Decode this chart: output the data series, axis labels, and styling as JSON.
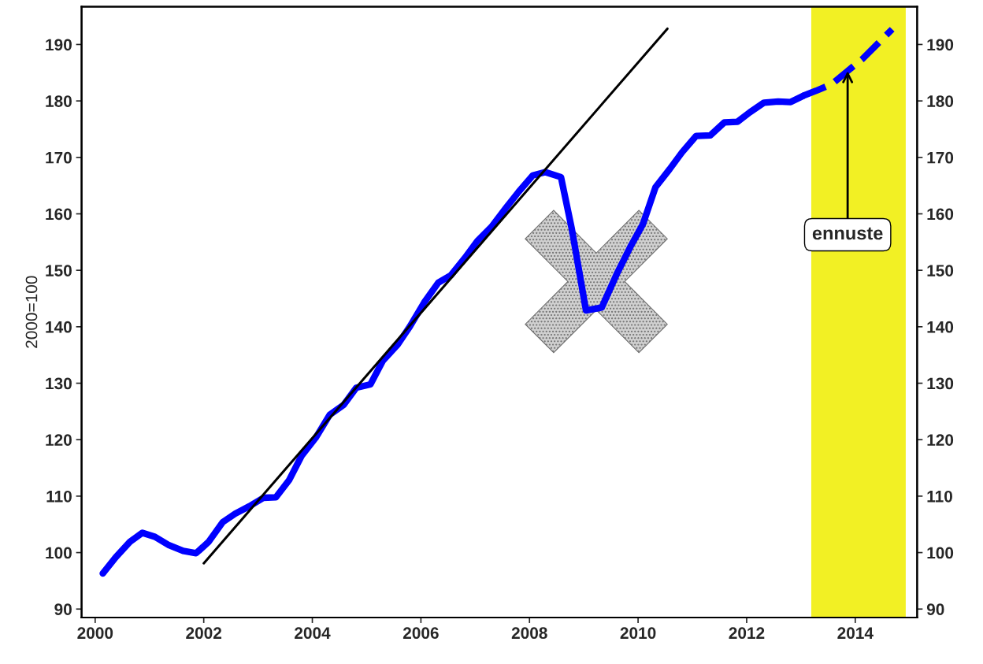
{
  "chart_data": {
    "type": "line",
    "ylabel": "2000=100",
    "xlim": [
      1999.75,
      2015.14
    ],
    "ylim": [
      88.5,
      196.7
    ],
    "xticks": [
      2000,
      2002,
      2004,
      2006,
      2008,
      2010,
      2012,
      2014
    ],
    "yticks": [
      90,
      100,
      110,
      120,
      130,
      140,
      150,
      160,
      170,
      180,
      190
    ],
    "y2lim": [
      88.5,
      196.7
    ],
    "y2ticks": [
      90,
      100,
      110,
      120,
      130,
      140,
      150,
      160,
      170,
      180,
      190
    ],
    "grid": false,
    "legend": false,
    "series": [
      {
        "color": "#0000ff",
        "line_style": "solid",
        "x": [
          2000.14,
          2000.38,
          2000.64,
          2000.87,
          2001.1,
          2001.36,
          2001.62,
          2001.86,
          2002.09,
          2002.35,
          2002.58,
          2002.84,
          2003.1,
          2003.33,
          2003.57,
          2003.8,
          2004.06,
          2004.32,
          2004.58,
          2004.81,
          2005.07,
          2005.3,
          2005.57,
          2005.8,
          2006.06,
          2006.32,
          2006.55,
          2006.81,
          2007.04,
          2007.3,
          2007.57,
          2007.8,
          2008.06,
          2008.29,
          2008.58,
          2008.78,
          2009.04,
          2009.33,
          2009.62,
          2009.86,
          2010.09,
          2010.32,
          2010.58,
          2010.81,
          2011.07,
          2011.33,
          2011.59,
          2011.83,
          2012.06,
          2012.32,
          2012.58,
          2012.81,
          2013.04
        ],
        "values": [
          96.3,
          99.2,
          101.9,
          103.5,
          102.8,
          101.3,
          100.3,
          99.9,
          101.9,
          105.4,
          106.9,
          108.2,
          109.7,
          109.8,
          112.8,
          117.1,
          120.3,
          124.4,
          126.2,
          129.2,
          129.8,
          134.0,
          136.8,
          140.1,
          144.3,
          147.8,
          149.1,
          152.2,
          155.2,
          157.7,
          161.1,
          163.9,
          166.8,
          167.4,
          166.5,
          157.3,
          142.9,
          143.4,
          149.6,
          154.2,
          158.2,
          164.7,
          167.9,
          170.9,
          173.8,
          173.9,
          176.2,
          176.3,
          178.0,
          179.7,
          179.9,
          179.8,
          180.9
        ]
      },
      {
        "color": "#0000ff",
        "line_style": "dashed",
        "x": [
          2013.04,
          2013.28,
          2013.57,
          2013.86,
          2014.14,
          2014.68
        ],
        "values": [
          180.9,
          181.8,
          183.0,
          185.3,
          187.5,
          192.7
        ]
      },
      {
        "color": "#000000",
        "line_style": "solid",
        "x": [
          2002.0,
          2010.54
        ],
        "values": [
          98.1,
          192.8
        ]
      }
    ],
    "bands": [
      {
        "axis": "x",
        "from": 2013.19,
        "to": 2014.93,
        "color": "#f2f024"
      }
    ],
    "annotations": [
      {
        "text": "ennuste",
        "x": 2013.86,
        "y": 185.3
      }
    ]
  }
}
